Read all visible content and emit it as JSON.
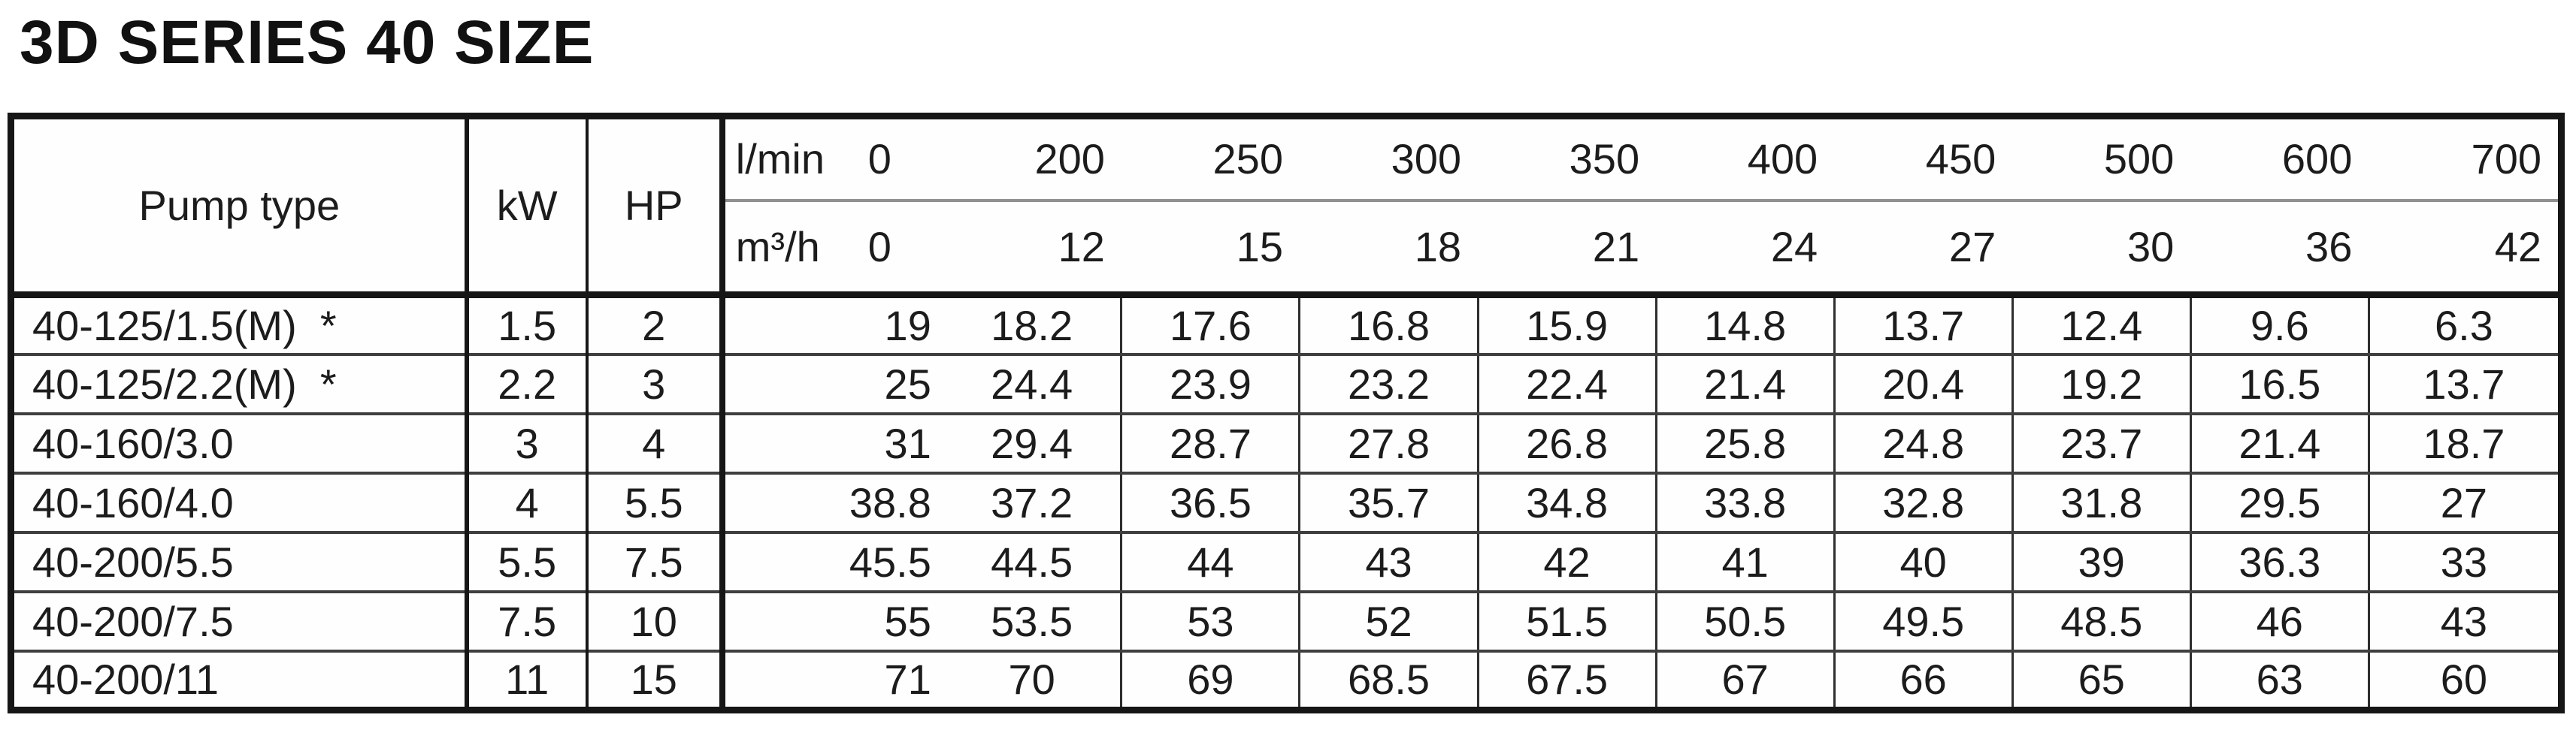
{
  "page_title": "3D SERIES 40 SIZE",
  "colors": {
    "border_dark": "#161616",
    "row_divider": "#3f3f3f",
    "subheader_divider": "#909090",
    "text": "#1c1c1c",
    "background": "#ffffff"
  },
  "table": {
    "columns": {
      "pump_type_label": "Pump type",
      "kw_label": "kW",
      "hp_label": "HP",
      "flow_units": {
        "lmin_label": "l/min",
        "m3h_label": "m³/h"
      },
      "flow_lmin": [
        "0",
        "200",
        "250",
        "300",
        "350",
        "400",
        "450",
        "500",
        "600",
        "700"
      ],
      "flow_m3h": [
        "0",
        "12",
        "15",
        "18",
        "21",
        "24",
        "27",
        "30",
        "36",
        "42"
      ]
    },
    "rows": [
      {
        "pump_type": "40-125/1.5(M)  *",
        "kw": "1.5",
        "hp": "2",
        "head_m": [
          "19",
          "18.2",
          "17.6",
          "16.8",
          "15.9",
          "14.8",
          "13.7",
          "12.4",
          "9.6",
          "6.3"
        ]
      },
      {
        "pump_type": "40-125/2.2(M)  *",
        "kw": "2.2",
        "hp": "3",
        "head_m": [
          "25",
          "24.4",
          "23.9",
          "23.2",
          "22.4",
          "21.4",
          "20.4",
          "19.2",
          "16.5",
          "13.7"
        ]
      },
      {
        "pump_type": "40-160/3.0",
        "kw": "3",
        "hp": "4",
        "head_m": [
          "31",
          "29.4",
          "28.7",
          "27.8",
          "26.8",
          "25.8",
          "24.8",
          "23.7",
          "21.4",
          "18.7"
        ]
      },
      {
        "pump_type": "40-160/4.0",
        "kw": "4",
        "hp": "5.5",
        "head_m": [
          "38.8",
          "37.2",
          "36.5",
          "35.7",
          "34.8",
          "33.8",
          "32.8",
          "31.8",
          "29.5",
          "27"
        ]
      },
      {
        "pump_type": "40-200/5.5",
        "kw": "5.5",
        "hp": "7.5",
        "head_m": [
          "45.5",
          "44.5",
          "44",
          "43",
          "42",
          "41",
          "40",
          "39",
          "36.3",
          "33"
        ]
      },
      {
        "pump_type": "40-200/7.5",
        "kw": "7.5",
        "hp": "10",
        "head_m": [
          "55",
          "53.5",
          "53",
          "52",
          "51.5",
          "50.5",
          "49.5",
          "48.5",
          "46",
          "43"
        ]
      },
      {
        "pump_type": "40-200/11",
        "kw": "11",
        "hp": "15",
        "head_m": [
          "71",
          "70",
          "69",
          "68.5",
          "67.5",
          "67",
          "66",
          "65",
          "63",
          "60"
        ]
      }
    ]
  }
}
